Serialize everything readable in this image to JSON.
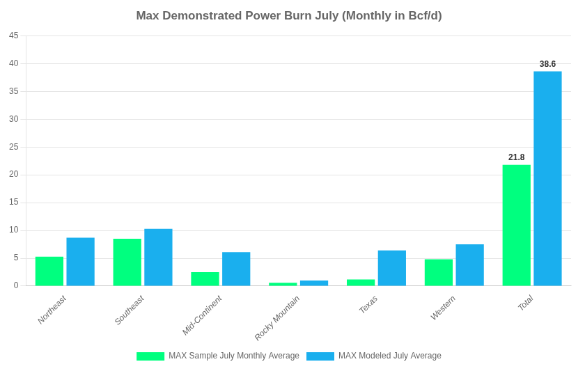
{
  "chart_data": {
    "type": "bar",
    "title": "Max Demonstrated Power Burn July (Monthly in Bcf/d)",
    "categories": [
      "Northeast",
      "Southeast",
      "Mid-Continent",
      "Rocky Mountain",
      "Texas",
      "Western",
      "Total"
    ],
    "series": [
      {
        "name": "MAX Sample July Monthly Average",
        "color": "#00FF7F",
        "values": [
          5.3,
          8.5,
          2.5,
          0.6,
          1.2,
          4.8,
          21.8
        ]
      },
      {
        "name": "MAX Modeled July Average",
        "color": "#1AAFEE",
        "values": [
          8.7,
          10.3,
          6.1,
          1.0,
          6.4,
          7.5,
          38.6
        ]
      }
    ],
    "annotations": [
      {
        "text": "21.8",
        "category": "Total",
        "series": "MAX Sample July Monthly Average"
      },
      {
        "text": "38.6",
        "category": "Total",
        "series": "MAX Modeled July Average"
      }
    ],
    "ylim": [
      0,
      45
    ],
    "yticks": [
      0,
      5,
      10,
      15,
      20,
      25,
      30,
      35,
      40,
      45
    ],
    "grid": true,
    "legend": "bottom"
  }
}
